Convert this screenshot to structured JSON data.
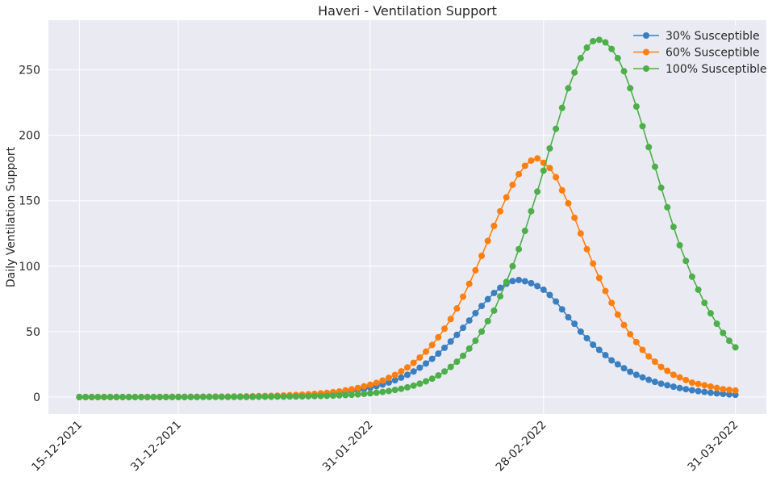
{
  "chart_data": {
    "type": "line",
    "title": "Haveri - Ventilation Support",
    "y_label": "Daily Ventilation Support",
    "x": [
      "15-12-2021",
      "16-12-2021",
      "17-12-2021",
      "18-12-2021",
      "19-12-2021",
      "20-12-2021",
      "21-12-2021",
      "22-12-2021",
      "23-12-2021",
      "24-12-2021",
      "25-12-2021",
      "26-12-2021",
      "27-12-2021",
      "28-12-2021",
      "29-12-2021",
      "30-12-2021",
      "31-12-2021",
      "01-01-2022",
      "02-01-2022",
      "03-01-2022",
      "04-01-2022",
      "05-01-2022",
      "06-01-2022",
      "07-01-2022",
      "08-01-2022",
      "09-01-2022",
      "10-01-2022",
      "11-01-2022",
      "12-01-2022",
      "13-01-2022",
      "14-01-2022",
      "15-01-2022",
      "16-01-2022",
      "17-01-2022",
      "18-01-2022",
      "19-01-2022",
      "20-01-2022",
      "21-01-2022",
      "22-01-2022",
      "23-01-2022",
      "24-01-2022",
      "25-01-2022",
      "26-01-2022",
      "27-01-2022",
      "28-01-2022",
      "29-01-2022",
      "30-01-2022",
      "31-01-2022",
      "01-02-2022",
      "02-02-2022",
      "03-02-2022",
      "04-02-2022",
      "05-02-2022",
      "06-02-2022",
      "07-02-2022",
      "08-02-2022",
      "09-02-2022",
      "10-02-2022",
      "11-02-2022",
      "12-02-2022",
      "13-02-2022",
      "14-02-2022",
      "15-02-2022",
      "16-02-2022",
      "17-02-2022",
      "18-02-2022",
      "19-02-2022",
      "20-02-2022",
      "21-02-2022",
      "22-02-2022",
      "23-02-2022",
      "24-02-2022",
      "25-02-2022",
      "26-02-2022",
      "27-02-2022",
      "28-02-2022",
      "01-03-2022",
      "02-03-2022",
      "03-03-2022",
      "04-03-2022",
      "05-03-2022",
      "06-03-2022",
      "07-03-2022",
      "08-03-2022",
      "09-03-2022",
      "10-03-2022",
      "11-03-2022",
      "12-03-2022",
      "13-03-2022",
      "14-03-2022",
      "15-03-2022",
      "16-03-2022",
      "17-03-2022",
      "18-03-2022",
      "19-03-2022",
      "20-03-2022",
      "21-03-2022",
      "22-03-2022",
      "23-03-2022",
      "24-03-2022",
      "25-03-2022",
      "26-03-2022",
      "27-03-2022",
      "28-03-2022",
      "29-03-2022",
      "30-03-2022",
      "31-03-2022"
    ],
    "series": [
      {
        "name": "30% Susceptible",
        "color": "#3a7fc0",
        "values": [
          0,
          0,
          0,
          0,
          0,
          0,
          0,
          0,
          0,
          0,
          0,
          0,
          0,
          0,
          0,
          0.1,
          0.1,
          0.1,
          0.1,
          0.1,
          0.2,
          0.2,
          0.2,
          0.2,
          0.2,
          0.3,
          0.3,
          0.3,
          0.4,
          0.5,
          0.6,
          0.7,
          0.8,
          0.9,
          1.1,
          1.3,
          1.5,
          1.6,
          1.8,
          2.1,
          2.5,
          2.9,
          3.4,
          4.0,
          4.6,
          5.3,
          6.2,
          7.2,
          8.3,
          9.6,
          11.1,
          12.8,
          14.8,
          17.0,
          19.5,
          22.4,
          25.6,
          29.2,
          33.2,
          37.6,
          42.4,
          47.5,
          52.9,
          58.5,
          64.1,
          69.6,
          74.8,
          79.5,
          83.5,
          86.6,
          88.6,
          89.4,
          88.5,
          87.0,
          84.8,
          82.0,
          78.0,
          73.0,
          67.0,
          61.0,
          56.0,
          50.0,
          45.0,
          40.0,
          36.0,
          32.0,
          28.0,
          25.0,
          22.0,
          19.3,
          17.0,
          15.0,
          13.2,
          11.6,
          10.2,
          9.0,
          7.9,
          6.9,
          6.0,
          5.2,
          4.5,
          3.9,
          3.3,
          2.8,
          2.4,
          2.0,
          1.7
        ]
      },
      {
        "name": "60% Susceptible",
        "color": "#ff7f0e",
        "values": [
          0,
          0,
          0,
          0,
          0,
          0,
          0,
          0,
          0,
          0,
          0,
          0,
          0,
          0.1,
          0.1,
          0.1,
          0.1,
          0.1,
          0.2,
          0.2,
          0.2,
          0.2,
          0.3,
          0.3,
          0.3,
          0.4,
          0.4,
          0.5,
          0.6,
          0.7,
          0.8,
          0.9,
          1.0,
          1.2,
          1.4,
          1.6,
          1.8,
          2.1,
          2.4,
          2.8,
          3.2,
          3.7,
          4.3,
          5.1,
          5.9,
          6.9,
          8.2,
          9.4,
          10.8,
          12.6,
          14.7,
          16.9,
          19.6,
          22.6,
          26.1,
          30.2,
          34.7,
          39.8,
          45.7,
          52.2,
          59.6,
          67.7,
          76.7,
          86.5,
          96.9,
          107.9,
          119.3,
          130.8,
          142.0,
          152.6,
          162.2,
          170.3,
          176.7,
          180.7,
          182.4,
          179,
          175,
          168,
          158,
          148,
          137,
          125,
          113,
          102,
          91,
          81,
          72,
          63,
          55,
          48,
          42,
          36,
          31,
          27,
          23,
          20,
          17,
          15,
          13,
          11,
          10,
          9,
          8,
          7,
          6,
          5.5,
          5
        ]
      },
      {
        "name": "100% Susceptible",
        "color": "#4daf4a",
        "values": [
          0,
          0,
          0,
          0,
          0,
          0,
          0,
          0,
          0,
          0,
          0,
          0,
          0,
          0,
          0,
          0,
          0,
          0,
          0,
          0,
          0.1,
          0.1,
          0.1,
          0.1,
          0.1,
          0.1,
          0.1,
          0.1,
          0.1,
          0.2,
          0.2,
          0.2,
          0.3,
          0.3,
          0.4,
          0.4,
          0.5,
          0.6,
          0.7,
          0.8,
          0.9,
          1.1,
          1.3,
          1.5,
          1.7,
          2.0,
          2.4,
          2.8,
          3.3,
          3.9,
          4.6,
          5.4,
          6.3,
          7.4,
          8.7,
          10.2,
          12,
          14,
          16.5,
          19.5,
          23,
          27,
          31.5,
          37,
          43,
          50,
          58,
          66,
          77,
          88,
          100,
          113,
          127,
          142,
          157,
          173,
          190,
          205,
          221,
          236,
          248,
          259,
          267,
          272,
          273,
          271,
          266,
          259,
          249,
          236,
          222,
          207,
          191,
          176,
          160,
          145,
          130,
          116,
          104,
          92,
          82,
          72,
          64,
          56,
          49,
          43,
          38
        ]
      }
    ],
    "xlim": [
      "10-12-2021",
      "05-04-2022"
    ],
    "xticks": [
      "15-12-2021",
      "31-12-2021",
      "31-01-2022",
      "28-02-2022",
      "31-03-2022"
    ],
    "ylim": [
      -13,
      288
    ],
    "yticks": [
      0,
      50,
      100,
      150,
      200,
      250
    ],
    "grid": true,
    "legend": "upper right"
  }
}
